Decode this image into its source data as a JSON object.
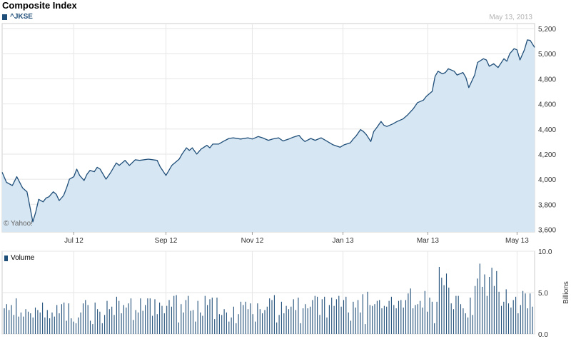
{
  "chart_data": [
    {
      "type": "area",
      "title": "Composite Index",
      "date_label": "May 13, 2013",
      "series": [
        {
          "name": "^JKSE",
          "color": "#1f4e79",
          "fill": "#d6e6f2"
        }
      ],
      "copyright": "© Yahoo!",
      "x_start": "2012-05-14",
      "x_end": "2013-05-13",
      "x_ticks": [
        {
          "label": "Jul 12",
          "date": "2012-07-02"
        },
        {
          "label": "Sep 12",
          "date": "2012-09-03"
        },
        {
          "label": "Nov 12",
          "date": "2012-11-01"
        },
        {
          "label": "Jan 13",
          "date": "2013-01-02"
        },
        {
          "label": "Mar 13",
          "date": "2013-03-01"
        },
        {
          "label": "May 13",
          "date": "2013-05-01"
        }
      ],
      "y_ticks": [
        "3,600",
        "3,800",
        "4,000",
        "4,200",
        "4,400",
        "4,600",
        "4,800",
        "5,000",
        "5,200"
      ],
      "ylim": [
        3580,
        5240
      ],
      "points": [
        [
          "2012-05-14",
          4055
        ],
        [
          "2012-05-17",
          3975
        ],
        [
          "2012-05-21",
          3950
        ],
        [
          "2012-05-24",
          4020
        ],
        [
          "2012-05-28",
          3930
        ],
        [
          "2012-05-31",
          3900
        ],
        [
          "2012-06-01",
          3840
        ],
        [
          "2012-06-04",
          3660
        ],
        [
          "2012-06-06",
          3740
        ],
        [
          "2012-06-08",
          3840
        ],
        [
          "2012-06-11",
          3820
        ],
        [
          "2012-06-13",
          3850
        ],
        [
          "2012-06-15",
          3860
        ],
        [
          "2012-06-18",
          3900
        ],
        [
          "2012-06-20",
          3880
        ],
        [
          "2012-06-22",
          3830
        ],
        [
          "2012-06-25",
          3870
        ],
        [
          "2012-06-27",
          3930
        ],
        [
          "2012-06-29",
          4000
        ],
        [
          "2012-07-02",
          4020
        ],
        [
          "2012-07-04",
          4080
        ],
        [
          "2012-07-06",
          4030
        ],
        [
          "2012-07-09",
          3990
        ],
        [
          "2012-07-11",
          4040
        ],
        [
          "2012-07-13",
          4070
        ],
        [
          "2012-07-16",
          4060
        ],
        [
          "2012-07-18",
          4095
        ],
        [
          "2012-07-20",
          4080
        ],
        [
          "2012-07-24",
          4000
        ],
        [
          "2012-07-27",
          4050
        ],
        [
          "2012-07-31",
          4130
        ],
        [
          "2012-08-02",
          4110
        ],
        [
          "2012-08-06",
          4150
        ],
        [
          "2012-08-09",
          4110
        ],
        [
          "2012-08-13",
          4155
        ],
        [
          "2012-08-16",
          4150
        ],
        [
          "2012-08-22",
          4160
        ],
        [
          "2012-08-28",
          4150
        ],
        [
          "2012-08-30",
          4100
        ],
        [
          "2012-09-03",
          4030
        ],
        [
          "2012-09-05",
          4070
        ],
        [
          "2012-09-07",
          4110
        ],
        [
          "2012-09-10",
          4140
        ],
        [
          "2012-09-12",
          4160
        ],
        [
          "2012-09-14",
          4200
        ],
        [
          "2012-09-17",
          4250
        ],
        [
          "2012-09-19",
          4230
        ],
        [
          "2012-09-21",
          4250
        ],
        [
          "2012-09-24",
          4200
        ],
        [
          "2012-09-27",
          4240
        ],
        [
          "2012-10-01",
          4270
        ],
        [
          "2012-10-03",
          4250
        ],
        [
          "2012-10-05",
          4280
        ],
        [
          "2012-10-09",
          4280
        ],
        [
          "2012-10-12",
          4300
        ],
        [
          "2012-10-16",
          4325
        ],
        [
          "2012-10-19",
          4330
        ],
        [
          "2012-10-24",
          4320
        ],
        [
          "2012-10-29",
          4330
        ],
        [
          "2012-11-01",
          4320
        ],
        [
          "2012-11-05",
          4340
        ],
        [
          "2012-11-08",
          4330
        ],
        [
          "2012-11-12",
          4310
        ],
        [
          "2012-11-15",
          4320
        ],
        [
          "2012-11-19",
          4330
        ],
        [
          "2012-11-22",
          4305
        ],
        [
          "2012-11-26",
          4320
        ],
        [
          "2012-11-29",
          4335
        ],
        [
          "2012-12-03",
          4350
        ],
        [
          "2012-12-05",
          4320
        ],
        [
          "2012-12-07",
          4300
        ],
        [
          "2012-12-11",
          4325
        ],
        [
          "2012-12-14",
          4310
        ],
        [
          "2012-12-18",
          4330
        ],
        [
          "2012-12-21",
          4310
        ],
        [
          "2012-12-26",
          4275
        ],
        [
          "2012-12-31",
          4255
        ],
        [
          "2013-01-03",
          4275
        ],
        [
          "2013-01-07",
          4290
        ],
        [
          "2013-01-09",
          4320
        ],
        [
          "2013-01-11",
          4345
        ],
        [
          "2013-01-14",
          4395
        ],
        [
          "2013-01-16",
          4380
        ],
        [
          "2013-01-18",
          4355
        ],
        [
          "2013-01-21",
          4300
        ],
        [
          "2013-01-23",
          4380
        ],
        [
          "2013-01-25",
          4410
        ],
        [
          "2013-01-28",
          4460
        ],
        [
          "2013-01-30",
          4430
        ],
        [
          "2013-02-01",
          4420
        ],
        [
          "2013-02-05",
          4440
        ],
        [
          "2013-02-08",
          4460
        ],
        [
          "2013-02-12",
          4480
        ],
        [
          "2013-02-15",
          4510
        ],
        [
          "2013-02-19",
          4560
        ],
        [
          "2013-02-22",
          4610
        ],
        [
          "2013-02-26",
          4630
        ],
        [
          "2013-02-28",
          4660
        ],
        [
          "2013-03-04",
          4700
        ],
        [
          "2013-03-06",
          4820
        ],
        [
          "2013-03-08",
          4860
        ],
        [
          "2013-03-11",
          4840
        ],
        [
          "2013-03-13",
          4850
        ],
        [
          "2013-03-15",
          4880
        ],
        [
          "2013-03-19",
          4860
        ],
        [
          "2013-03-21",
          4830
        ],
        [
          "2013-03-25",
          4850
        ],
        [
          "2013-03-27",
          4810
        ],
        [
          "2013-03-29",
          4730
        ],
        [
          "2013-04-02",
          4830
        ],
        [
          "2013-04-04",
          4930
        ],
        [
          "2013-04-08",
          4960
        ],
        [
          "2013-04-10",
          4950
        ],
        [
          "2013-04-12",
          4900
        ],
        [
          "2013-04-15",
          4920
        ],
        [
          "2013-04-18",
          4890
        ],
        [
          "2013-04-22",
          4960
        ],
        [
          "2013-04-24",
          4940
        ],
        [
          "2013-04-26",
          5000
        ],
        [
          "2013-04-29",
          5040
        ],
        [
          "2013-05-01",
          5030
        ],
        [
          "2013-05-03",
          4950
        ],
        [
          "2013-05-06",
          5030
        ],
        [
          "2013-05-08",
          5110
        ],
        [
          "2013-05-10",
          5105
        ],
        [
          "2013-05-13",
          5050
        ]
      ]
    },
    {
      "type": "bar",
      "title": "",
      "series": [
        {
          "name": "Volume",
          "color": "#1f4e79"
        }
      ],
      "ylabel": "Billions",
      "y_ticks": [
        "0.0",
        "5.0",
        "10.0"
      ],
      "ylim": [
        0,
        10
      ],
      "values": [
        3.1,
        3.6,
        2.9,
        3.5,
        2.3,
        4.3,
        2.1,
        2.6,
        2.1,
        3.0,
        2.7,
        2.5,
        2.0,
        3.2,
        2.9,
        2.6,
        3.8,
        2.0,
        2.9,
        1.9,
        2.6,
        2.1,
        3.5,
        2.5,
        3.6,
        3.8,
        1.6,
        3.7,
        1.9,
        1.5,
        1.3,
        2.0,
        2.6,
        3.7,
        4.1,
        3.5,
        1.6,
        1.2,
        3.8,
        3.0,
        2.7,
        1.3,
        2.3,
        4.0,
        3.0,
        3.3,
        2.3,
        4.5,
        4.0,
        2.5,
        3.5,
        3.2,
        3.7,
        4.3,
        1.7,
        2.9,
        2.6,
        4.3,
        2.8,
        3.5,
        4.3,
        4.3,
        2.2,
        4.2,
        2.4,
        3.8,
        3.4,
        2.5,
        3.4,
        4.1,
        3.3,
        4.6,
        4.7,
        1.4,
        3.6,
        2.6,
        4.1,
        4.6,
        2.8,
        2.9,
        1.5,
        4.0,
        2.6,
        2.2,
        4.6,
        3.5,
        4.2,
        4.4,
        1.8,
        4.4,
        2.4,
        2.3,
        3.0,
        2.6,
        1.5,
        2.0,
        3.3,
        1.3,
        2.4,
        3.9,
        3.5,
        3.9,
        3.0,
        3.7,
        2.4,
        1.5,
        3.7,
        3.0,
        2.5,
        2.9,
        3.3,
        4.3,
        4.1,
        4.7,
        1.4,
        2.3,
        3.9,
        2.5,
        3.4,
        3.0,
        3.3,
        4.2,
        2.9,
        4.4,
        1.3,
        3.1,
        3.6,
        3.1,
        3.3,
        4.1,
        4.6,
        4.5,
        2.3,
        4.2,
        4.5,
        2.0,
        3.5,
        4.4,
        3.4,
        4.2,
        4.6,
        3.3,
        4.1,
        4.5,
        2.6,
        1.6,
        3.9,
        3.2,
        4.1,
        2.6,
        4.8,
        1.2,
        5.1,
        3.5,
        3.4,
        3.6,
        4.0,
        4.1,
        3.1,
        3.4,
        3.3,
        4.0,
        4.5,
        3.5,
        3.1,
        4.0,
        4.1,
        3.2,
        4.1,
        4.9,
        5.5,
        3.1,
        3.5,
        3.6,
        4.0,
        3.2,
        5.2,
        2.7,
        4.4,
        3.9,
        1.3,
        3.9,
        8.1,
        6.8,
        5.9,
        7.3,
        5.6,
        3.7,
        3.0,
        4.6,
        4.6,
        3.6,
        3.1,
        2.5,
        2.0,
        4.4,
        2.3,
        5.8,
        6.7,
        8.5,
        5.7,
        7.2,
        4.6,
        6.9,
        8.0,
        5.8,
        7.6,
        5.1,
        3.4,
        3.9,
        5.4,
        3.7,
        3.2,
        4.1,
        4.5,
        2.5,
        3.5,
        5.2,
        4.9,
        3.1,
        4.9,
        3.3
      ]
    }
  ]
}
